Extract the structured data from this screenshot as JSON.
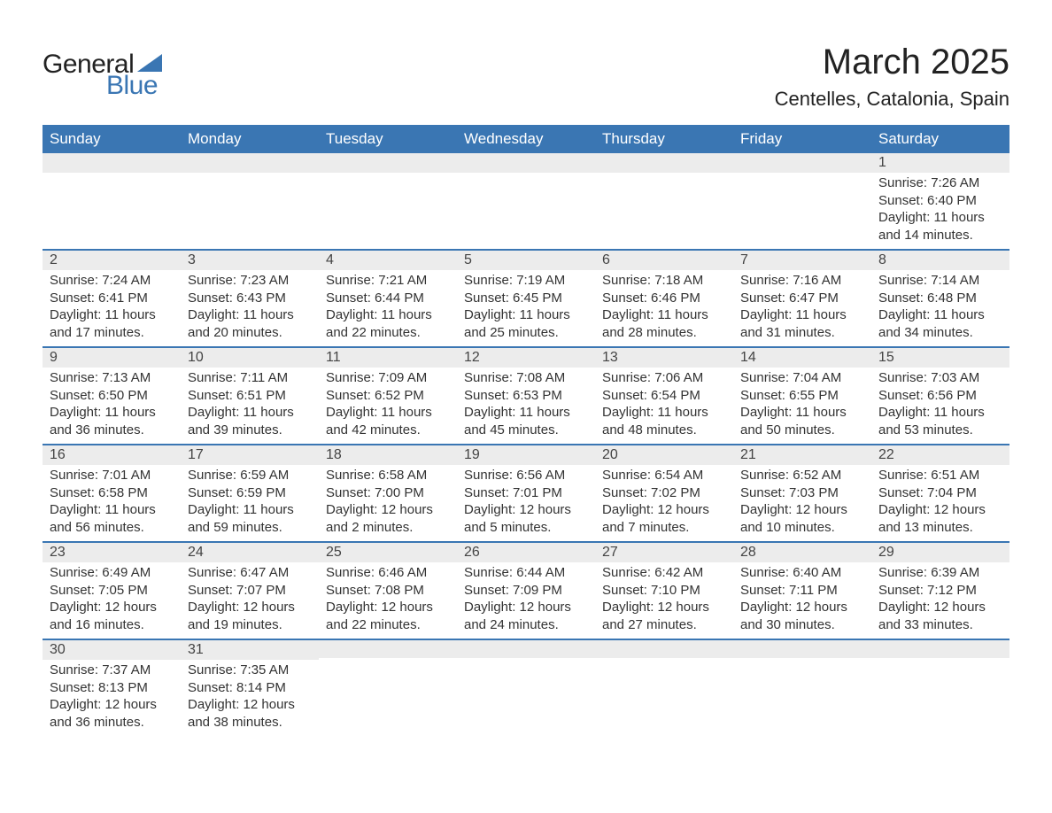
{
  "logo": {
    "text_general": "General",
    "text_blue": "Blue",
    "mark_color": "#3a76b3"
  },
  "title": "March 2025",
  "location": "Centelles, Catalonia, Spain",
  "colors": {
    "header_bg": "#3a76b3",
    "header_text": "#ffffff",
    "day_header_bg": "#ececec",
    "row_divider": "#3a76b3",
    "body_text": "#333333",
    "background": "#ffffff"
  },
  "typography": {
    "title_fontsize": 40,
    "location_fontsize": 22,
    "weekday_fontsize": 17,
    "daynum_fontsize": 16,
    "body_fontsize": 15,
    "logo_fontsize": 30
  },
  "weekdays": [
    "Sunday",
    "Monday",
    "Tuesday",
    "Wednesday",
    "Thursday",
    "Friday",
    "Saturday"
  ],
  "weeks": [
    [
      null,
      null,
      null,
      null,
      null,
      null,
      {
        "day": "1",
        "sunrise": "Sunrise: 7:26 AM",
        "sunset": "Sunset: 6:40 PM",
        "daylight": "Daylight: 11 hours and 14 minutes."
      }
    ],
    [
      {
        "day": "2",
        "sunrise": "Sunrise: 7:24 AM",
        "sunset": "Sunset: 6:41 PM",
        "daylight": "Daylight: 11 hours and 17 minutes."
      },
      {
        "day": "3",
        "sunrise": "Sunrise: 7:23 AM",
        "sunset": "Sunset: 6:43 PM",
        "daylight": "Daylight: 11 hours and 20 minutes."
      },
      {
        "day": "4",
        "sunrise": "Sunrise: 7:21 AM",
        "sunset": "Sunset: 6:44 PM",
        "daylight": "Daylight: 11 hours and 22 minutes."
      },
      {
        "day": "5",
        "sunrise": "Sunrise: 7:19 AM",
        "sunset": "Sunset: 6:45 PM",
        "daylight": "Daylight: 11 hours and 25 minutes."
      },
      {
        "day": "6",
        "sunrise": "Sunrise: 7:18 AM",
        "sunset": "Sunset: 6:46 PM",
        "daylight": "Daylight: 11 hours and 28 minutes."
      },
      {
        "day": "7",
        "sunrise": "Sunrise: 7:16 AM",
        "sunset": "Sunset: 6:47 PM",
        "daylight": "Daylight: 11 hours and 31 minutes."
      },
      {
        "day": "8",
        "sunrise": "Sunrise: 7:14 AM",
        "sunset": "Sunset: 6:48 PM",
        "daylight": "Daylight: 11 hours and 34 minutes."
      }
    ],
    [
      {
        "day": "9",
        "sunrise": "Sunrise: 7:13 AM",
        "sunset": "Sunset: 6:50 PM",
        "daylight": "Daylight: 11 hours and 36 minutes."
      },
      {
        "day": "10",
        "sunrise": "Sunrise: 7:11 AM",
        "sunset": "Sunset: 6:51 PM",
        "daylight": "Daylight: 11 hours and 39 minutes."
      },
      {
        "day": "11",
        "sunrise": "Sunrise: 7:09 AM",
        "sunset": "Sunset: 6:52 PM",
        "daylight": "Daylight: 11 hours and 42 minutes."
      },
      {
        "day": "12",
        "sunrise": "Sunrise: 7:08 AM",
        "sunset": "Sunset: 6:53 PM",
        "daylight": "Daylight: 11 hours and 45 minutes."
      },
      {
        "day": "13",
        "sunrise": "Sunrise: 7:06 AM",
        "sunset": "Sunset: 6:54 PM",
        "daylight": "Daylight: 11 hours and 48 minutes."
      },
      {
        "day": "14",
        "sunrise": "Sunrise: 7:04 AM",
        "sunset": "Sunset: 6:55 PM",
        "daylight": "Daylight: 11 hours and 50 minutes."
      },
      {
        "day": "15",
        "sunrise": "Sunrise: 7:03 AM",
        "sunset": "Sunset: 6:56 PM",
        "daylight": "Daylight: 11 hours and 53 minutes."
      }
    ],
    [
      {
        "day": "16",
        "sunrise": "Sunrise: 7:01 AM",
        "sunset": "Sunset: 6:58 PM",
        "daylight": "Daylight: 11 hours and 56 minutes."
      },
      {
        "day": "17",
        "sunrise": "Sunrise: 6:59 AM",
        "sunset": "Sunset: 6:59 PM",
        "daylight": "Daylight: 11 hours and 59 minutes."
      },
      {
        "day": "18",
        "sunrise": "Sunrise: 6:58 AM",
        "sunset": "Sunset: 7:00 PM",
        "daylight": "Daylight: 12 hours and 2 minutes."
      },
      {
        "day": "19",
        "sunrise": "Sunrise: 6:56 AM",
        "sunset": "Sunset: 7:01 PM",
        "daylight": "Daylight: 12 hours and 5 minutes."
      },
      {
        "day": "20",
        "sunrise": "Sunrise: 6:54 AM",
        "sunset": "Sunset: 7:02 PM",
        "daylight": "Daylight: 12 hours and 7 minutes."
      },
      {
        "day": "21",
        "sunrise": "Sunrise: 6:52 AM",
        "sunset": "Sunset: 7:03 PM",
        "daylight": "Daylight: 12 hours and 10 minutes."
      },
      {
        "day": "22",
        "sunrise": "Sunrise: 6:51 AM",
        "sunset": "Sunset: 7:04 PM",
        "daylight": "Daylight: 12 hours and 13 minutes."
      }
    ],
    [
      {
        "day": "23",
        "sunrise": "Sunrise: 6:49 AM",
        "sunset": "Sunset: 7:05 PM",
        "daylight": "Daylight: 12 hours and 16 minutes."
      },
      {
        "day": "24",
        "sunrise": "Sunrise: 6:47 AM",
        "sunset": "Sunset: 7:07 PM",
        "daylight": "Daylight: 12 hours and 19 minutes."
      },
      {
        "day": "25",
        "sunrise": "Sunrise: 6:46 AM",
        "sunset": "Sunset: 7:08 PM",
        "daylight": "Daylight: 12 hours and 22 minutes."
      },
      {
        "day": "26",
        "sunrise": "Sunrise: 6:44 AM",
        "sunset": "Sunset: 7:09 PM",
        "daylight": "Daylight: 12 hours and 24 minutes."
      },
      {
        "day": "27",
        "sunrise": "Sunrise: 6:42 AM",
        "sunset": "Sunset: 7:10 PM",
        "daylight": "Daylight: 12 hours and 27 minutes."
      },
      {
        "day": "28",
        "sunrise": "Sunrise: 6:40 AM",
        "sunset": "Sunset: 7:11 PM",
        "daylight": "Daylight: 12 hours and 30 minutes."
      },
      {
        "day": "29",
        "sunrise": "Sunrise: 6:39 AM",
        "sunset": "Sunset: 7:12 PM",
        "daylight": "Daylight: 12 hours and 33 minutes."
      }
    ],
    [
      {
        "day": "30",
        "sunrise": "Sunrise: 7:37 AM",
        "sunset": "Sunset: 8:13 PM",
        "daylight": "Daylight: 12 hours and 36 minutes."
      },
      {
        "day": "31",
        "sunrise": "Sunrise: 7:35 AM",
        "sunset": "Sunset: 8:14 PM",
        "daylight": "Daylight: 12 hours and 38 minutes."
      },
      null,
      null,
      null,
      null,
      null
    ]
  ]
}
